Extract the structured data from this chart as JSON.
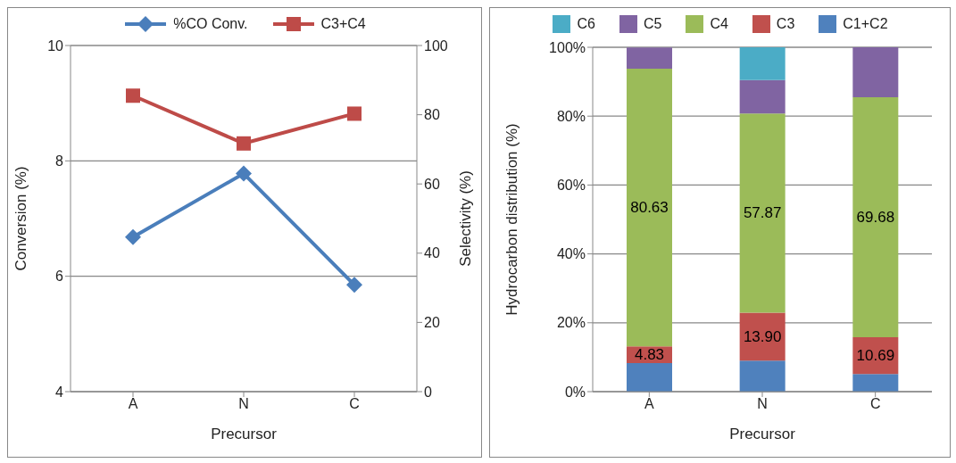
{
  "chart_data": [
    {
      "type": "line",
      "xlabel": "Precursor",
      "ylabel": "Conversion (%)",
      "y2label": "Selectivity (%)",
      "categories": [
        "A",
        "N",
        "C"
      ],
      "ylim": [
        4,
        10
      ],
      "yticks": [
        4,
        6,
        8,
        10
      ],
      "y2lim": [
        0,
        100
      ],
      "y2ticks": [
        0,
        20,
        40,
        60,
        80,
        100
      ],
      "grid": "y",
      "legend": "top",
      "line_style": "solid",
      "series": [
        {
          "name": "%CO Conv.",
          "color": "#4a7ebb",
          "marker": "diamond",
          "values": [
            6.68,
            7.78,
            5.85
          ]
        },
        {
          "name": "C3+C4",
          "color": "#be4b48",
          "marker": "square",
          "axis": "y2",
          "values": [
            85.5,
            71.7,
            80.3
          ]
        }
      ]
    },
    {
      "type": "bar",
      "stacked": true,
      "xlabel": "Precursor",
      "ylabel": "Hydrocarbon distribution (%)",
      "categories": [
        "A",
        "N",
        "C"
      ],
      "ylim": [
        0,
        100
      ],
      "yticks": [
        {
          "value": 0,
          "label": "0%"
        },
        {
          "value": 20,
          "label": "20%"
        },
        {
          "value": 40,
          "label": "40%"
        },
        {
          "value": 60,
          "label": "60%"
        },
        {
          "value": 80,
          "label": "80%"
        },
        {
          "value": 100,
          "label": "100%"
        }
      ],
      "grid": "y",
      "legend": "top",
      "series": [
        {
          "name": "C1+C2",
          "color": "#4f81bd",
          "values": [
            8.3,
            9.0,
            5.1
          ]
        },
        {
          "name": "C3",
          "color": "#c0504d",
          "values": [
            4.83,
            13.9,
            10.69
          ],
          "value_labels": [
            "4.83",
            "13.90",
            "10.69"
          ]
        },
        {
          "name": "C4",
          "color": "#9bbb59",
          "values": [
            80.63,
            57.87,
            69.68
          ],
          "value_labels": [
            "80.63",
            "57.87",
            "69.68"
          ]
        },
        {
          "name": "C5",
          "color": "#8064a2",
          "values": [
            6.2,
            9.7,
            14.5
          ]
        },
        {
          "name": "C6",
          "color": "#4bacc6",
          "values": [
            0,
            9.5,
            0
          ]
        }
      ]
    }
  ]
}
